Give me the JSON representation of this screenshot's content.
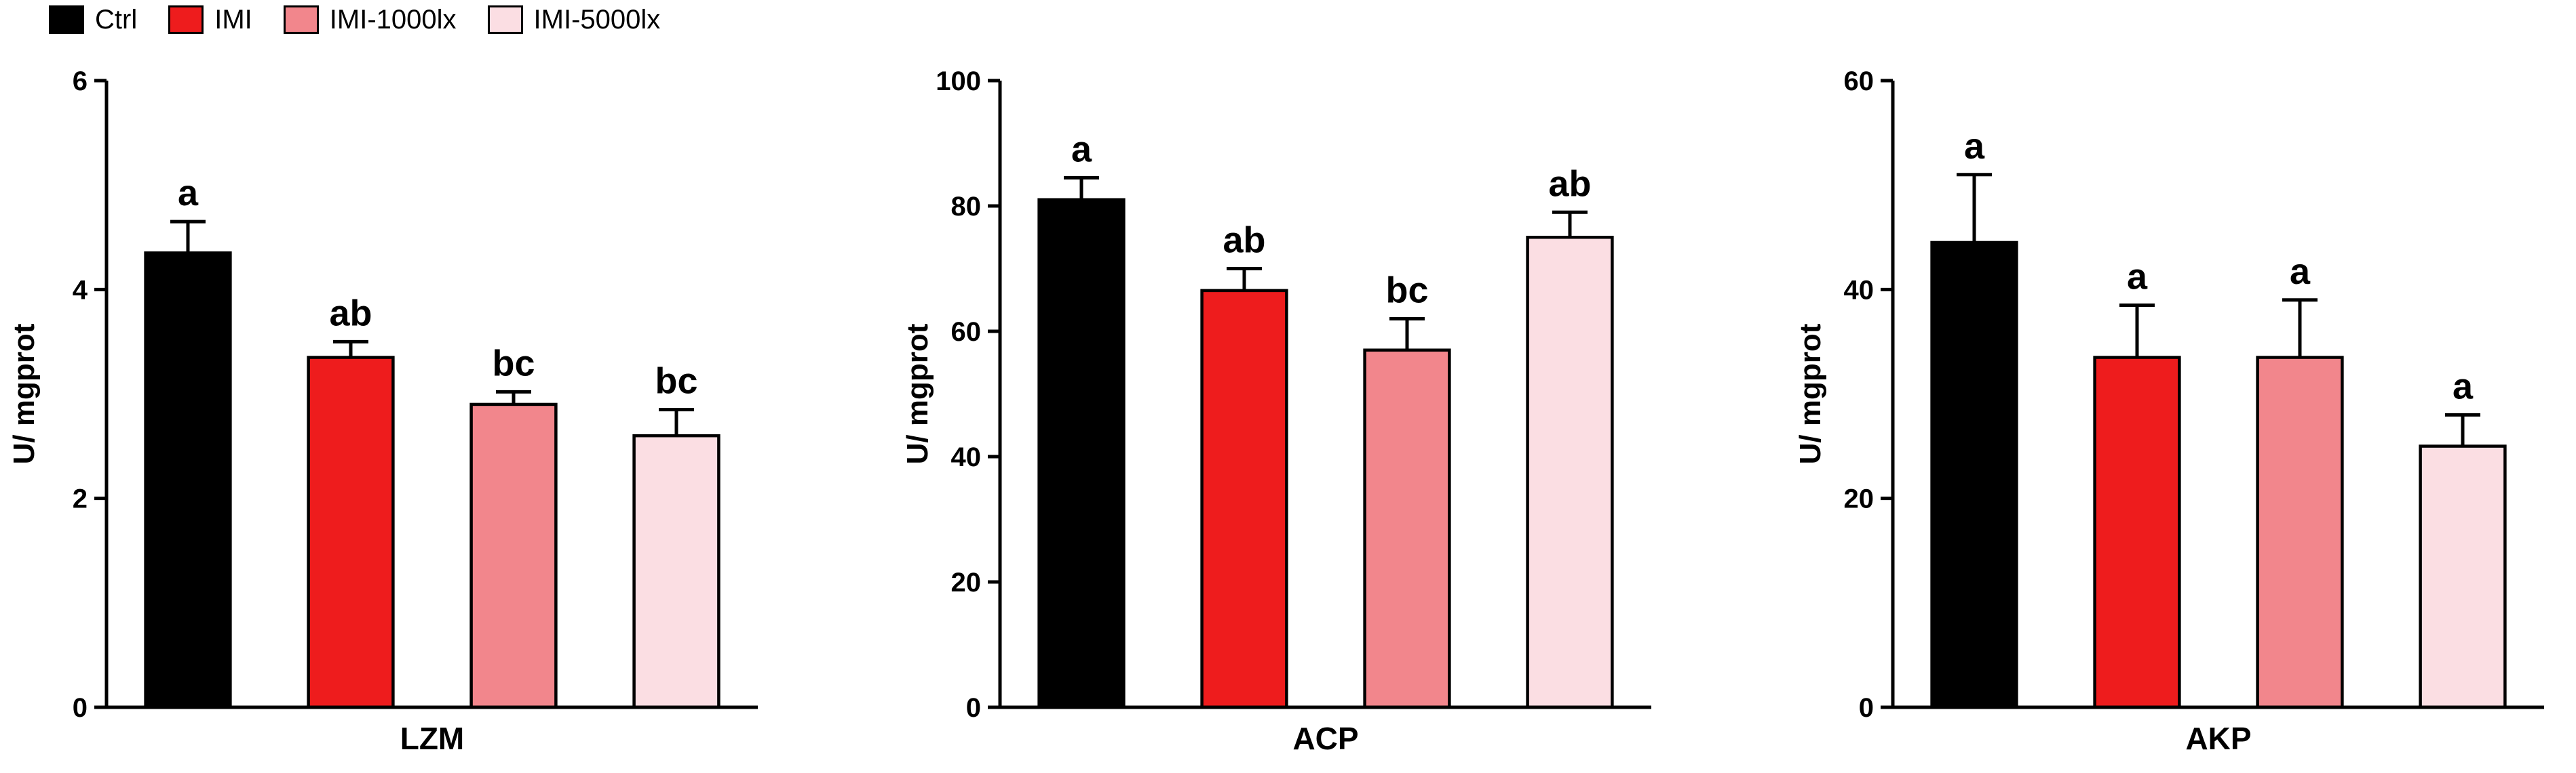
{
  "legend": {
    "items": [
      {
        "label": "Ctrl",
        "color": "#000000"
      },
      {
        "label": "IMI",
        "color": "#ee1c1d"
      },
      {
        "label": "IMI-1000lx",
        "color": "#f2868c"
      },
      {
        "label": "IMI-5000lx",
        "color": "#fbdee3"
      }
    ]
  },
  "chart_data": [
    {
      "type": "bar",
      "title": "LZM",
      "ylabel": "U/ mgprot",
      "ylim": [
        0,
        6
      ],
      "yticks": [
        0,
        2,
        4,
        6
      ],
      "categories": [
        "Ctrl",
        "IMI",
        "IMI-1000lx",
        "IMI-5000lx"
      ],
      "values": [
        4.35,
        3.35,
        2.9,
        2.6
      ],
      "errors_plus": [
        0.3,
        0.15,
        0.12,
        0.25
      ],
      "sig_letters": [
        "a",
        "ab",
        "bc",
        "bc"
      ],
      "bar_colors": [
        "#000000",
        "#ee1c1d",
        "#f2868c",
        "#fbdee3"
      ],
      "grid": false,
      "legend_position": "top-left-of-figure"
    },
    {
      "type": "bar",
      "title": "ACP",
      "ylabel": "U/ mgprot",
      "ylim": [
        0,
        100
      ],
      "yticks": [
        0,
        20,
        40,
        60,
        80,
        100
      ],
      "categories": [
        "Ctrl",
        "IMI",
        "IMI-1000lx",
        "IMI-5000lx"
      ],
      "values": [
        81,
        66.5,
        57,
        75
      ],
      "errors_plus": [
        3.5,
        3.5,
        5,
        4
      ],
      "sig_letters": [
        "a",
        "ab",
        "bc",
        "ab"
      ],
      "bar_colors": [
        "#000000",
        "#ee1c1d",
        "#f2868c",
        "#fbdee3"
      ],
      "grid": false,
      "legend_position": "top-left-of-figure"
    },
    {
      "type": "bar",
      "title": "AKP",
      "ylabel": "U/ mgprot",
      "ylim": [
        0,
        60
      ],
      "yticks": [
        0,
        20,
        40,
        60
      ],
      "categories": [
        "Ctrl",
        "IMI",
        "IMI-1000lx",
        "IMI-5000lx"
      ],
      "values": [
        44.5,
        33.5,
        33.5,
        25
      ],
      "errors_plus": [
        6.5,
        5,
        5.5,
        3
      ],
      "sig_letters": [
        "a",
        "a",
        "a",
        "a"
      ],
      "bar_colors": [
        "#000000",
        "#ee1c1d",
        "#f2868c",
        "#fbdee3"
      ],
      "grid": false,
      "legend_position": "top-left-of-figure"
    }
  ]
}
